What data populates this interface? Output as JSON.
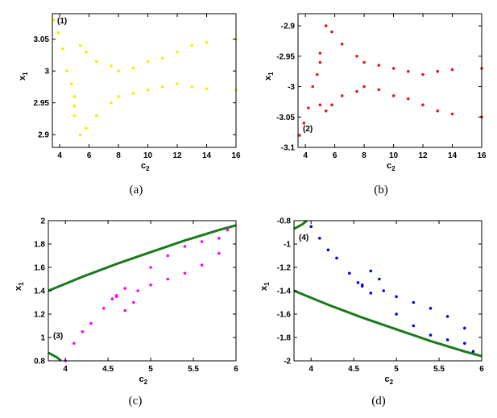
{
  "chart_data": [
    {
      "panel": "(a)",
      "type": "scatter",
      "title": "",
      "xlabel": "c_2",
      "ylabel": "x_1",
      "xlim": [
        3.5,
        16
      ],
      "ylim": [
        2.88,
        3.09
      ],
      "xticks": [
        "4",
        "6",
        "8",
        "10",
        "12",
        "14",
        "16"
      ],
      "yticks": [
        "2.9",
        "2.95",
        "3",
        "3.05"
      ],
      "annotation": "(1)",
      "series": [
        {
          "name": "bifurcation points",
          "color": "#f0f000",
          "kind": "points",
          "x": [
            3.6,
            3.9,
            4.2,
            4.5,
            4.8,
            5.0,
            5.0,
            5.4,
            5.8,
            6.5,
            7.5,
            8.0,
            9.0,
            10.0,
            11.0,
            12.0,
            13.0,
            14.0,
            16.0,
            5.0,
            5.4,
            5.8,
            6.5,
            7.5,
            8.0,
            9.0,
            10.0,
            11.0,
            12.0,
            13.0,
            14.0,
            16.0
          ],
          "y": [
            3.08,
            3.06,
            3.035,
            3.0,
            2.98,
            2.96,
            2.945,
            3.04,
            3.03,
            3.015,
            3.008,
            3.0,
            3.005,
            3.015,
            3.02,
            3.03,
            3.04,
            3.045,
            3.05,
            2.93,
            2.9,
            2.91,
            2.93,
            2.95,
            2.96,
            2.965,
            2.97,
            2.975,
            2.98,
            2.975,
            2.972,
            2.97
          ]
        }
      ]
    },
    {
      "panel": "(b)",
      "type": "scatter",
      "title": "",
      "xlabel": "c_2",
      "ylabel": "x_1",
      "xlim": [
        3.5,
        16
      ],
      "ylim": [
        -3.1,
        -2.88
      ],
      "xticks": [
        "4",
        "6",
        "8",
        "10",
        "12",
        "14",
        "16"
      ],
      "yticks": [
        "-2.9",
        "-2.95",
        "-3",
        "-3.05",
        "-3.1"
      ],
      "annotation": "(2)",
      "series": [
        {
          "name": "bifurcation points",
          "color": "#e41a1c",
          "kind": "points",
          "x": [
            3.6,
            3.9,
            4.2,
            4.5,
            4.8,
            5.0,
            5.0,
            5.4,
            5.8,
            6.5,
            7.5,
            8.0,
            9.0,
            10.0,
            11.0,
            12.0,
            13.0,
            14.0,
            16.0,
            5.0,
            5.4,
            5.8,
            6.5,
            7.5,
            8.0,
            9.0,
            10.0,
            11.0,
            12.0,
            13.0,
            14.0,
            16.0
          ],
          "y": [
            -3.08,
            -3.06,
            -3.035,
            -3.0,
            -2.98,
            -2.96,
            -2.945,
            -2.9,
            -2.91,
            -2.93,
            -2.95,
            -2.96,
            -2.965,
            -2.97,
            -2.975,
            -2.98,
            -2.975,
            -2.972,
            -2.97,
            -3.03,
            -3.04,
            -3.03,
            -3.015,
            -3.008,
            -3.0,
            -3.005,
            -3.015,
            -3.02,
            -3.03,
            -3.04,
            -3.045,
            -3.05
          ]
        }
      ]
    },
    {
      "panel": "(c)",
      "type": "scatter",
      "title": "",
      "xlabel": "c_2",
      "ylabel": "x_1",
      "xlim": [
        3.8,
        6
      ],
      "ylim": [
        0.8,
        2
      ],
      "xticks": [
        "4",
        "4.5",
        "5",
        "5.5",
        "6"
      ],
      "yticks": [
        "0.8",
        "1",
        "1.2",
        "1.4",
        "1.6",
        "1.8",
        "2"
      ],
      "annotation": "(3)",
      "series": [
        {
          "name": "green curve upper",
          "color": "#1a7a1a",
          "kind": "line",
          "x": [
            3.8,
            4.2,
            4.6,
            5.0,
            5.4,
            5.8,
            6.0
          ],
          "y": [
            1.4,
            1.52,
            1.63,
            1.73,
            1.83,
            1.92,
            1.96
          ]
        },
        {
          "name": "green curve lower",
          "color": "#1a7a1a",
          "kind": "line",
          "x": [
            3.8,
            3.9,
            3.95
          ],
          "y": [
            0.87,
            0.83,
            0.8
          ]
        },
        {
          "name": "bifurcation points",
          "color": "#ff00ff",
          "kind": "points",
          "x": [
            4.0,
            4.1,
            4.2,
            4.3,
            4.45,
            4.55,
            4.6,
            4.7,
            4.85,
            5.0,
            5.2,
            5.4,
            5.6,
            5.8,
            4.6,
            4.7,
            4.8,
            5.0,
            5.2,
            5.4,
            5.6,
            5.8,
            5.9
          ],
          "y": [
            0.8,
            0.95,
            1.05,
            1.12,
            1.25,
            1.33,
            1.36,
            1.42,
            1.4,
            1.45,
            1.5,
            1.55,
            1.62,
            1.72,
            1.35,
            1.23,
            1.3,
            1.6,
            1.7,
            1.78,
            1.82,
            1.85,
            1.92
          ]
        }
      ]
    },
    {
      "panel": "(d)",
      "type": "scatter",
      "title": "",
      "xlabel": "c_2",
      "ylabel": "x_1",
      "xlim": [
        3.8,
        6
      ],
      "ylim": [
        -2,
        -0.8
      ],
      "xticks": [
        "4",
        "4.5",
        "5",
        "5.5",
        "6"
      ],
      "yticks": [
        "-0.8",
        "-1",
        "-1.2",
        "-1.4",
        "-1.6",
        "-1.8",
        "-2"
      ],
      "annotation": "(4)",
      "series": [
        {
          "name": "green curve lower",
          "color": "#1a7a1a",
          "kind": "line",
          "x": [
            3.8,
            4.2,
            4.6,
            5.0,
            5.4,
            5.8,
            6.0
          ],
          "y": [
            -1.4,
            -1.52,
            -1.63,
            -1.73,
            -1.83,
            -1.92,
            -1.96
          ]
        },
        {
          "name": "green curve upper",
          "color": "#1a7a1a",
          "kind": "line",
          "x": [
            3.8,
            3.9,
            3.95
          ],
          "y": [
            -0.87,
            -0.83,
            -0.8
          ]
        },
        {
          "name": "bifurcation points",
          "color": "#0000ee",
          "kind": "points",
          "x": [
            4.0,
            4.1,
            4.2,
            4.3,
            4.45,
            4.55,
            4.6,
            4.7,
            4.85,
            5.0,
            5.2,
            5.4,
            5.6,
            5.8,
            4.6,
            4.7,
            4.8,
            5.0,
            5.2,
            5.4,
            5.6,
            5.8,
            5.9
          ],
          "y": [
            -0.85,
            -0.95,
            -1.05,
            -1.12,
            -1.25,
            -1.33,
            -1.36,
            -1.42,
            -1.4,
            -1.45,
            -1.5,
            -1.55,
            -1.62,
            -1.72,
            -1.35,
            -1.23,
            -1.3,
            -1.6,
            -1.7,
            -1.78,
            -1.82,
            -1.85,
            -1.92
          ]
        }
      ]
    }
  ],
  "captions": [
    "(a)",
    "(b)",
    "(c)",
    "(d)"
  ]
}
